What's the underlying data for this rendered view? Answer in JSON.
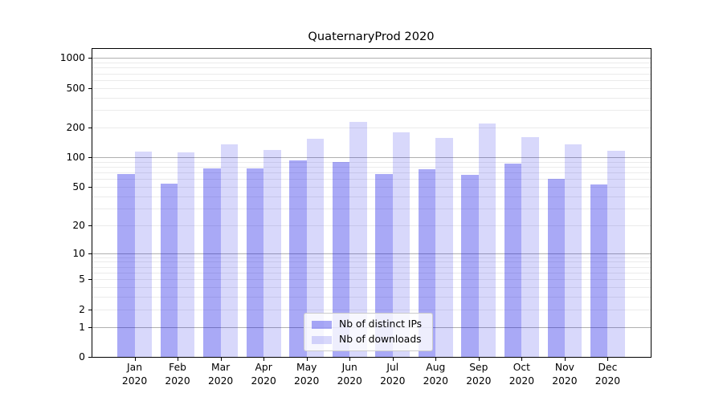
{
  "title": "QuaternaryProd 2020",
  "chart_data": {
    "type": "bar",
    "categories": [
      "Jan",
      "Feb",
      "Mar",
      "Apr",
      "May",
      "Jun",
      "Jul",
      "Aug",
      "Sep",
      "Oct",
      "Nov",
      "Dec"
    ],
    "year_label": "2020",
    "series": [
      {
        "name": "Nb of distinct IPs",
        "color": "rgba(10,10,230,0.35)",
        "values": [
          67,
          54,
          77,
          77,
          93,
          89,
          68,
          75,
          66,
          86,
          60,
          53
        ]
      },
      {
        "name": "Nb of downloads",
        "color": "rgba(10,10,230,0.16)",
        "values": [
          115,
          113,
          134,
          119,
          155,
          229,
          180,
          156,
          220,
          160,
          134,
          116
        ]
      }
    ],
    "yscale": "log1p",
    "ylim": [
      0,
      1250
    ],
    "yticks": [
      "1000",
      "500",
      "200",
      "100",
      "50",
      "20",
      "10",
      "5",
      "2",
      "1",
      "0"
    ],
    "ytick_values": [
      1000,
      500,
      200,
      100,
      50,
      20,
      10,
      5,
      2,
      1,
      0
    ],
    "grid": {
      "major_color": "#b0b0b0",
      "minor_color": "#ebebeb"
    },
    "legend_position": "lower-center",
    "xlabel": "",
    "ylabel": ""
  }
}
